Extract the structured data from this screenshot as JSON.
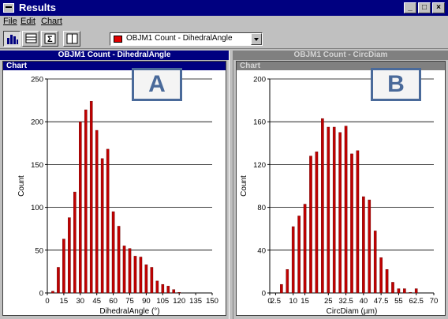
{
  "window": {
    "title": "Results"
  },
  "menu": {
    "items": [
      "File",
      "Edit",
      "Chart"
    ]
  },
  "toolbar": {
    "buttons": [
      "bar-chart-icon",
      "table-icon",
      "sigma-icon",
      "split-view-icon"
    ],
    "dropdown": {
      "value": "OBJM1 Count - DihedralAngle",
      "swatch_color": "#e00000"
    }
  },
  "panes": [
    {
      "header": "OBJM1 Count - DihedralAngle",
      "chart_label": "Chart",
      "badge": "A",
      "active": true
    },
    {
      "header": "OBJM1 Count - CircDiam",
      "chart_label": "Chart",
      "badge": "B",
      "active": false
    }
  ],
  "colors": {
    "bar": "#c00000",
    "title_active": "#000080",
    "title_inactive": "#808080",
    "badge": "#4a6a9a"
  },
  "chart_data": [
    {
      "type": "bar",
      "title": "",
      "xlabel": "DihedralAngle (°)",
      "ylabel": "Count",
      "xlim": [
        0,
        150
      ],
      "ylim": [
        0,
        250
      ],
      "yticks": [
        0,
        50,
        100,
        150,
        200,
        250
      ],
      "xticks": [
        0,
        15,
        30,
        45,
        60,
        75,
        90,
        105,
        120,
        135,
        150
      ],
      "grid": "horizontal",
      "x": [
        5,
        10,
        15,
        20,
        25,
        30,
        35,
        40,
        45,
        50,
        55,
        60,
        65,
        70,
        75,
        80,
        85,
        90,
        95,
        100,
        105,
        110,
        115,
        120
      ],
      "values": [
        2,
        30,
        63,
        88,
        118,
        200,
        214,
        224,
        190,
        157,
        168,
        95,
        78,
        55,
        52,
        43,
        42,
        33,
        30,
        14,
        10,
        8,
        4,
        0
      ]
    },
    {
      "type": "bar",
      "title": "",
      "xlabel": "CircDiam (µm)",
      "ylabel": "Count",
      "xlim": [
        0,
        70
      ],
      "ylim": [
        0,
        200
      ],
      "yticks": [
        0,
        40,
        80,
        120,
        160,
        200
      ],
      "xtick_labels": [
        "0",
        "2.5",
        "10",
        "15",
        "25",
        "32.5",
        "40",
        "47.5",
        "55",
        "62.5",
        "70"
      ],
      "xtick_values": [
        0,
        2.5,
        10,
        15,
        25,
        32.5,
        40,
        47.5,
        55,
        62.5,
        70
      ],
      "grid": "horizontal",
      "x": [
        5,
        7.5,
        10,
        12.5,
        15,
        17.5,
        20,
        22.5,
        25,
        27.5,
        30,
        32.5,
        35,
        37.5,
        40,
        42.5,
        45,
        47.5,
        50,
        52.5,
        55,
        57.5,
        60,
        62.5
      ],
      "values": [
        8,
        22,
        62,
        72,
        83,
        128,
        132,
        163,
        155,
        155,
        150,
        156,
        130,
        133,
        90,
        87,
        58,
        33,
        22,
        10,
        4,
        4,
        0,
        4
      ]
    }
  ]
}
